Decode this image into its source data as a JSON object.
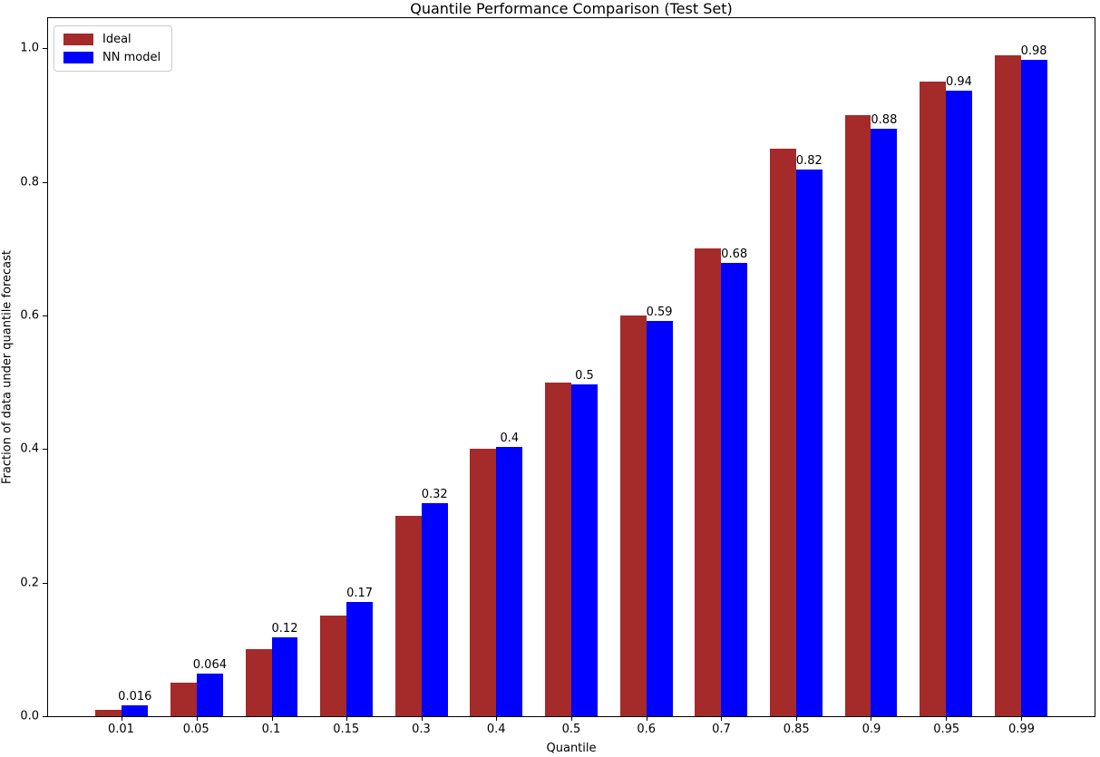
{
  "chart_data": {
    "type": "bar",
    "title": "Quantile Performance Comparison (Test Set)",
    "xlabel": "Quantile",
    "ylabel": "Fraction of data under quantile forecast",
    "categories": [
      "0.01",
      "0.05",
      "0.1",
      "0.15",
      "0.3",
      "0.4",
      "0.5",
      "0.6",
      "0.7",
      "0.85",
      "0.9",
      "0.95",
      "0.99"
    ],
    "series": [
      {
        "name": "Ideal",
        "color": "#a52a2a",
        "values": [
          0.01,
          0.05,
          0.1,
          0.15,
          0.3,
          0.4,
          0.5,
          0.6,
          0.7,
          0.85,
          0.9,
          0.95,
          0.99
        ],
        "labels": null
      },
      {
        "name": "NN model",
        "color": "#0000ff",
        "values": [
          0.016,
          0.064,
          0.118,
          0.171,
          0.319,
          0.403,
          0.497,
          0.592,
          0.678,
          0.818,
          0.879,
          0.936,
          0.983
        ],
        "labels": [
          "0.016",
          "0.064",
          "0.12",
          "0.17",
          "0.32",
          "0.4",
          "0.5",
          "0.59",
          "0.68",
          "0.82",
          "0.88",
          "0.94",
          "0.98"
        ]
      }
    ],
    "ylim": [
      0,
      1.045
    ],
    "yticks": [
      "0.0",
      "0.2",
      "0.4",
      "0.6",
      "0.8",
      "1.0"
    ],
    "grid": false,
    "legend_position": "upper-left"
  }
}
